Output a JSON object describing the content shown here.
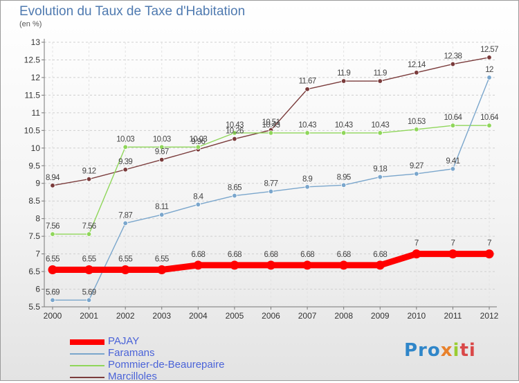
{
  "chart_data": {
    "type": "line",
    "title": "Evolution du Taux de Taxe d'Habitation",
    "ylabel": "(en %)",
    "xlabel": "",
    "ylim": [
      5.5,
      13
    ],
    "yticks": [
      "5.5",
      "6",
      "6.5",
      "7",
      "7.5",
      "8",
      "8.5",
      "9",
      "9.5",
      "10",
      "10.5",
      "11",
      "11.5",
      "12",
      "12.5",
      "13"
    ],
    "grid": "horizontal",
    "legend_position": "bottom-left",
    "categories": [
      "2000",
      "2001",
      "2002",
      "2003",
      "2004",
      "2005",
      "2006",
      "2007",
      "2008",
      "2009",
      "2010",
      "2011",
      "2012"
    ],
    "series": [
      {
        "name": "PAJAY",
        "color": "#ff0000",
        "values": [
          6.55,
          6.55,
          6.55,
          6.55,
          6.68,
          6.68,
          6.68,
          6.68,
          6.68,
          6.68,
          7,
          7,
          7
        ],
        "labels": [
          "6.55",
          "6.55",
          "6.55",
          "6.55",
          "6.68",
          "6.68",
          "6.68",
          "6.68",
          "6.68",
          "6.68",
          "7",
          "7",
          "7"
        ]
      },
      {
        "name": "Faramans",
        "color": "#7aa6cc",
        "values": [
          5.69,
          5.69,
          7.87,
          8.11,
          8.4,
          8.65,
          8.77,
          8.9,
          8.95,
          9.18,
          9.27,
          9.41,
          12
        ],
        "labels": [
          "5.69",
          "5.69",
          "7.87",
          "8.11",
          "8.4",
          "8.65",
          "8.77",
          "8.9",
          "8.95",
          "9.18",
          "9.27",
          "9.41",
          "12"
        ]
      },
      {
        "name": "Pommier-de-Beaurepaire",
        "color": "#8fd65a",
        "values": [
          7.56,
          7.56,
          10.03,
          10.03,
          10.03,
          10.43,
          10.43,
          10.43,
          10.43,
          10.43,
          10.53,
          10.64,
          10.64
        ],
        "labels": [
          "7.56",
          "7.56",
          "10.03",
          "10.03",
          "10.03",
          "10.43",
          "10.43",
          "10.43",
          "10.43",
          "10.43",
          "10.53",
          "10.64",
          "10.64"
        ]
      },
      {
        "name": "Marcilloles",
        "color": "#7a3b3b",
        "values": [
          8.94,
          9.12,
          9.39,
          9.67,
          9.96,
          10.26,
          10.51,
          11.67,
          11.9,
          11.9,
          12.14,
          12.38,
          12.57
        ],
        "labels": [
          "8.94",
          "9.12",
          "9.39",
          "9.67",
          "9.96",
          "10.26",
          "10.51",
          "11.67",
          "11.9",
          "11.9",
          "12.14",
          "12.38",
          "12.57"
        ]
      }
    ]
  },
  "branding": {
    "logo_parts": [
      "Pro",
      "x",
      "i",
      "ti"
    ]
  }
}
